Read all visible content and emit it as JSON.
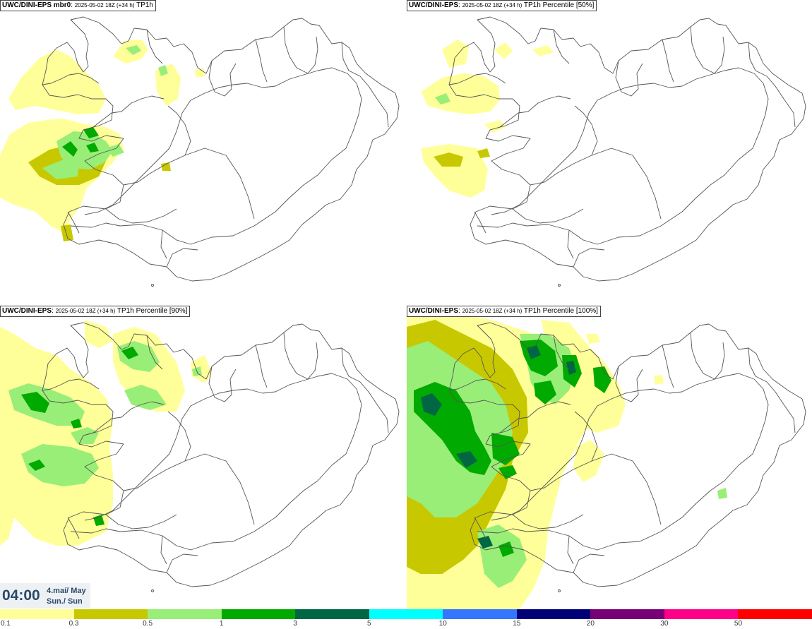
{
  "panels": [
    {
      "model": "UWC/DINI-EPS mbr0",
      "run": "2025-05-02 18Z (+34 h)",
      "product": "TP1h"
    },
    {
      "model": "UWC/DINI-EPS",
      "run": "2025-05-02 18Z (+34 h)",
      "product": "TP1h Percentile [50%]"
    },
    {
      "model": "UWC/DINI-EPS",
      "run": "2025-05-02 18Z (+34 h)",
      "product": "TP1h Percentile [90%]"
    },
    {
      "model": "UWC/DINI-EPS",
      "run": "2025-05-02 18Z (+34 h)",
      "product": "TP1h Percentile [100%]"
    }
  ],
  "valid_time": {
    "clock": "04:00",
    "date": "4.maí/ May",
    "weekday": "Sun./ Sun"
  },
  "legend": {
    "labels": [
      "0.1",
      "0.3",
      "0.5",
      "1",
      "3",
      "5",
      "10",
      "15",
      "20",
      "30",
      "50"
    ],
    "colors": [
      "#ffff99",
      "#c8c800",
      "#99ee77",
      "#00aa00",
      "#006644",
      "#00ffff",
      "#3377ff",
      "#000077",
      "#770077",
      "#ff0088",
      "#ff0000"
    ]
  },
  "colors": {
    "light_yellow": "#ffff99",
    "olive": "#c8c800",
    "light_green": "#99ee77",
    "green": "#00aa00",
    "dark_green": "#006644",
    "coastline": "#555555"
  }
}
